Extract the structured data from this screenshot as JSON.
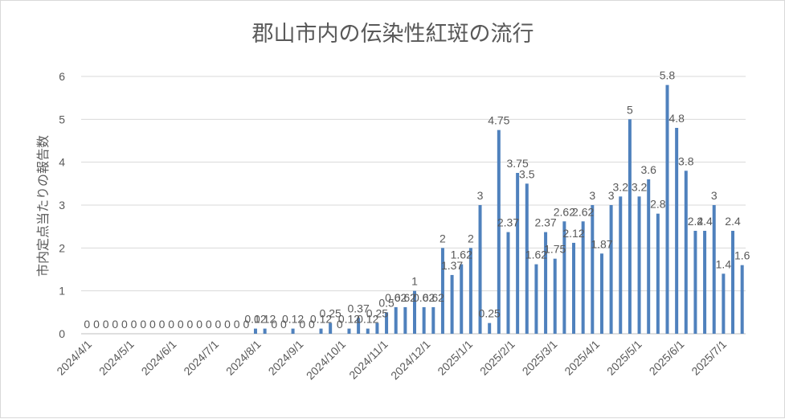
{
  "chart_data": {
    "type": "bar",
    "title": "郡山市内の伝染性紅斑の流行",
    "ylabel": "市内定点当たりの報告数",
    "xlabel": "",
    "ylim": [
      0,
      6
    ],
    "yticks": [
      "0",
      "1",
      "2",
      "3",
      "4",
      "5",
      "6"
    ],
    "grid": true,
    "legend": "none",
    "bar_color": "#4f81bd",
    "x_tick_labels": [
      "2024/4/1",
      "2024/5/1",
      "2024/6/1",
      "2024/7/1",
      "2024/8/1",
      "2024/9/1",
      "2024/10/1",
      "2024/11/1",
      "2024/12/1",
      "2025/1/1",
      "2025/2/1",
      "2025/3/1",
      "2025/4/1",
      "2025/5/1",
      "2025/6/1",
      "2025/7/1"
    ],
    "values": [
      0,
      0,
      0,
      0,
      0,
      0,
      0,
      0,
      0,
      0,
      0,
      0,
      0,
      0,
      0,
      0,
      0,
      0,
      0.12,
      0.12,
      0,
      0,
      0.12,
      0,
      0,
      0.12,
      0.25,
      0,
      0.12,
      0.37,
      0.12,
      0.25,
      0.5,
      0.62,
      0.62,
      1,
      0.62,
      0.62,
      2,
      1.37,
      1.62,
      2,
      3,
      0.25,
      4.75,
      2.37,
      3.75,
      3.5,
      1.62,
      2.37,
      1.75,
      2.62,
      2.12,
      2.62,
      3,
      1.87,
      3,
      3.2,
      5,
      3.2,
      3.6,
      2.8,
      5.8,
      4.8,
      3.8,
      2.4,
      2.4,
      3,
      1.4,
      2.4,
      1.6
    ],
    "data_labels": [
      "0",
      "0",
      "0",
      "0",
      "0",
      "0",
      "0",
      "0",
      "0",
      "0",
      "0",
      "0",
      "0",
      "0",
      "0",
      "0",
      "0",
      "0",
      "0.12",
      "0.12",
      "0",
      "0",
      "0.12",
      "0",
      "0",
      "0.12",
      "0.25",
      "0",
      "0.12",
      "0.37",
      "0.12",
      "0.25",
      "0.5",
      "0.62",
      "0.62",
      "1",
      "0.62",
      "0.62",
      "2",
      "1.37",
      "1.62",
      "2",
      "3",
      "0.25",
      "4.75",
      "2.37",
      "3.75",
      "3.5",
      "1.62",
      "2.37",
      "1.75",
      "2.62",
      "2.12",
      "2.62",
      "3",
      "1.87",
      "3",
      "3.2",
      "5",
      "3.2",
      "3.6",
      "2.8",
      "5.8",
      "4.8",
      "3.8",
      "2.4",
      "2.4",
      "3",
      "1.4",
      "2.4",
      "1.6"
    ]
  }
}
